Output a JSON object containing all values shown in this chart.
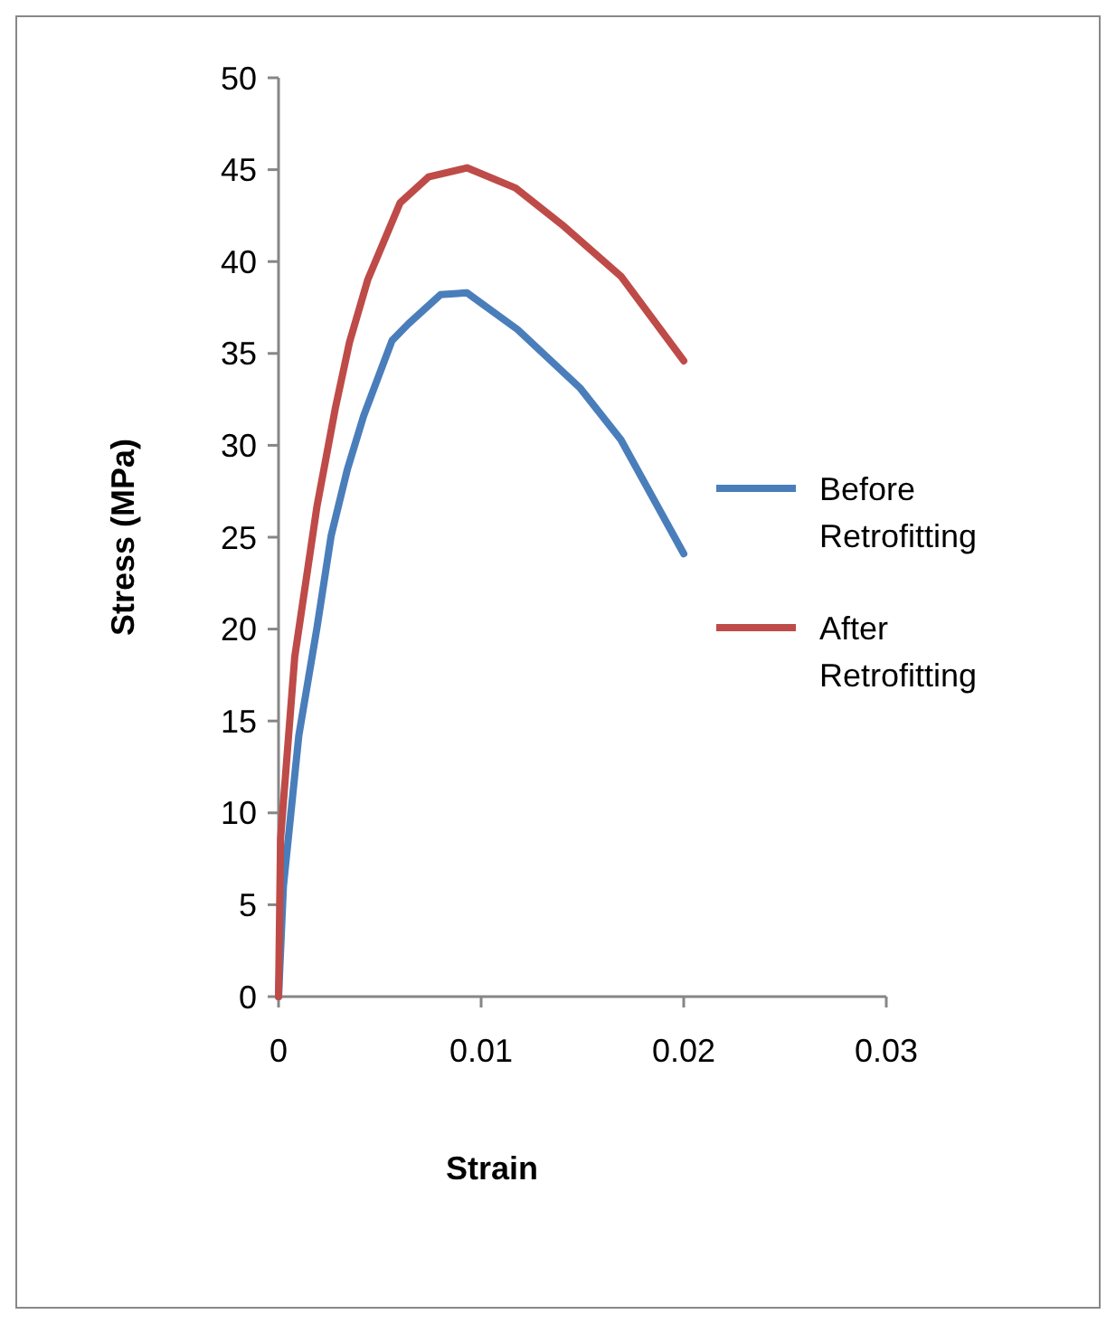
{
  "chart_data": {
    "type": "line",
    "xlabel": "Strain",
    "ylabel": "Stress (MPa)",
    "xlim": [
      0,
      0.03
    ],
    "xticks": [
      0,
      0.01,
      0.02,
      0.03
    ],
    "ylim": [
      0,
      50
    ],
    "yticks": [
      0,
      5,
      10,
      15,
      20,
      25,
      30,
      35,
      40,
      45,
      50
    ],
    "grid": false,
    "legend": "right",
    "marker": "none",
    "line_style": "solid",
    "series": [
      {
        "name": "Before Retrofitting",
        "color": "#4a7ebb",
        "x": [
          0,
          0.00024,
          0.001,
          0.0019,
          0.0026,
          0.0034,
          0.0042,
          0.0056,
          0.0064,
          0.008,
          0.0093,
          0.0118,
          0.0149,
          0.0169,
          0.02
        ],
        "values": [
          0,
          6,
          14.2,
          20.1,
          25.1,
          28.7,
          31.6,
          35.7,
          36.6,
          38.2,
          38.3,
          36.3,
          33.1,
          30.3,
          24.1
        ]
      },
      {
        "name": "After Retrofitting",
        "color": "#be4b48",
        "x": [
          0,
          0.0001,
          0.0008,
          0.0019,
          0.0028,
          0.0035,
          0.0044,
          0.006,
          0.0074,
          0.0093,
          0.0117,
          0.014,
          0.0169,
          0.02
        ],
        "values": [
          0,
          8.6,
          18.5,
          26.7,
          32,
          35.6,
          39,
          43.2,
          44.6,
          45.1,
          44,
          42,
          39.2,
          34.6
        ]
      }
    ]
  }
}
